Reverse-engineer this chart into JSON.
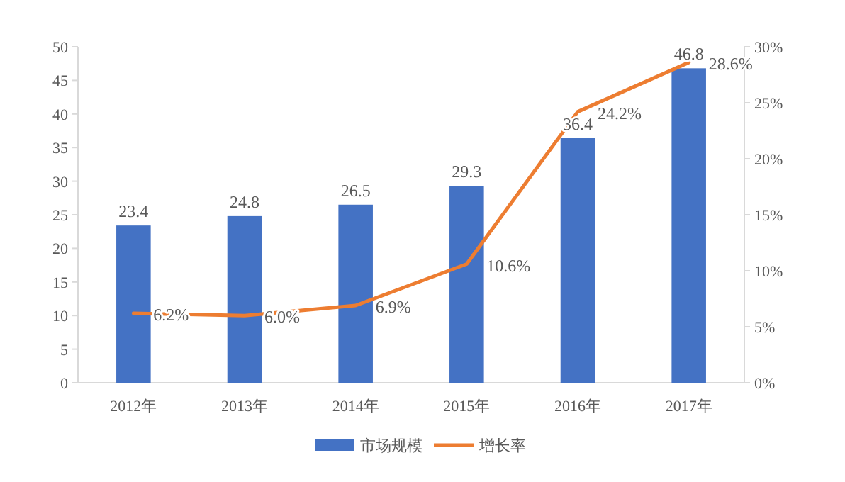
{
  "chart_data": {
    "type": "bar",
    "categories": [
      "2012年",
      "2013年",
      "2014年",
      "2015年",
      "2016年",
      "2017年"
    ],
    "series": [
      {
        "name": "市场规模",
        "color": "#4472c4",
        "values": [
          23.4,
          24.8,
          26.5,
          29.3,
          36.4,
          46.8
        ],
        "value_labels": [
          "23.4",
          "24.8",
          "26.5",
          "29.3",
          "36.4",
          "46.8"
        ]
      },
      {
        "name": "增长率",
        "type": "line",
        "axis": "y2",
        "color": "#ed7d31",
        "values": [
          6.2,
          6.0,
          6.9,
          10.6,
          24.2,
          28.6
        ],
        "value_labels": [
          "6.2%",
          "6.0%",
          "6.9%",
          "10.6%",
          "24.2%",
          "28.6%"
        ]
      }
    ],
    "ylim": [
      0,
      50
    ],
    "yticks": [
      0,
      5,
      10,
      15,
      20,
      25,
      30,
      35,
      40,
      45,
      50
    ],
    "y2lim": [
      0,
      30
    ],
    "y2ticks": [
      {
        "value": 0,
        "label": "0%"
      },
      {
        "value": 5,
        "label": "5%"
      },
      {
        "value": 10,
        "label": "10%"
      },
      {
        "value": 15,
        "label": "15%"
      },
      {
        "value": 20,
        "label": "20%"
      },
      {
        "value": 25,
        "label": "25%"
      },
      {
        "value": 30,
        "label": "30%"
      }
    ],
    "legend": "bottom",
    "line_style": "solid",
    "marker": "none"
  }
}
